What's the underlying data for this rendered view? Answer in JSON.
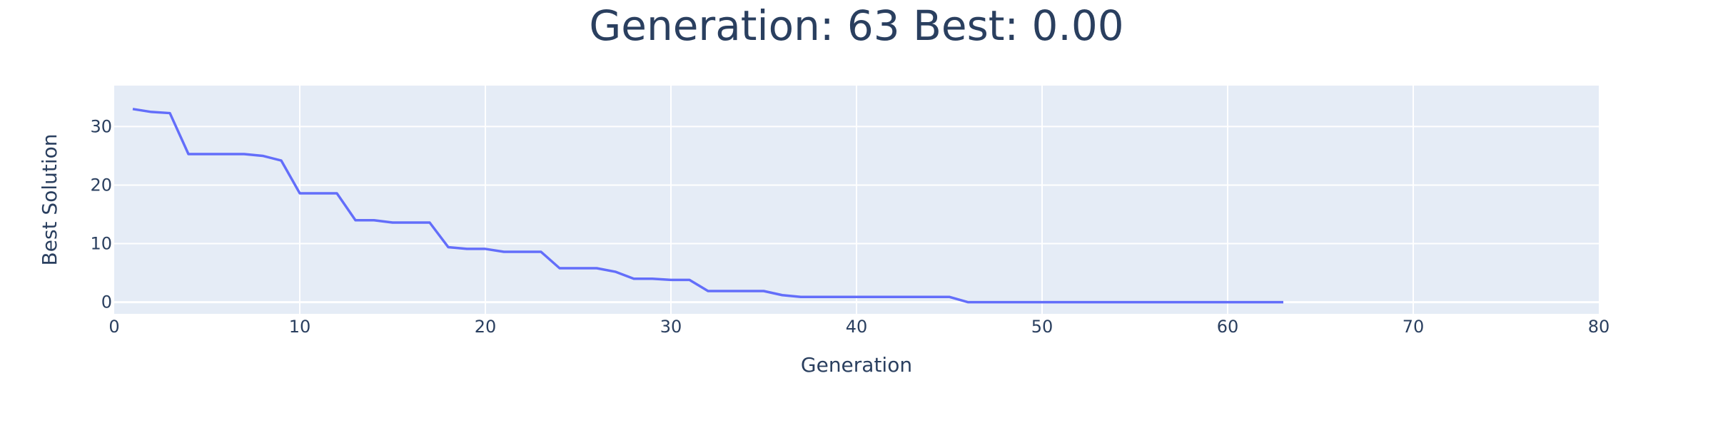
{
  "chart_data": {
    "type": "line",
    "title": "Generation: 63 Best: 0.00",
    "xlabel": "Generation",
    "ylabel": "Best Solution",
    "xlim": [
      0,
      80
    ],
    "ylim": [
      -2,
      37
    ],
    "x_ticks": [
      0,
      10,
      20,
      30,
      40,
      50,
      60,
      70,
      80
    ],
    "y_ticks": [
      0,
      10,
      20,
      30
    ],
    "grid": true,
    "legend": "none",
    "colors": {
      "plot_background": "#e5ecf6",
      "gridline": "#ffffff",
      "line": "#636efa",
      "text": "#2a3f5f"
    },
    "series": [
      {
        "x": [
          1,
          2,
          3,
          4,
          5,
          6,
          7,
          8,
          9,
          10,
          11,
          12,
          13,
          14,
          15,
          16,
          17,
          18,
          19,
          20,
          21,
          22,
          23,
          24,
          25,
          26,
          27,
          28,
          29,
          30,
          31,
          32,
          33,
          34,
          35,
          36,
          37,
          38,
          39,
          40,
          41,
          42,
          43,
          44,
          45,
          46,
          47,
          48,
          49,
          50,
          51,
          52,
          53,
          54,
          55,
          56,
          57,
          58,
          59,
          60,
          61,
          62,
          63
        ],
        "y": [
          33.0,
          32.5,
          32.3,
          25.3,
          25.3,
          25.3,
          25.3,
          25.0,
          24.2,
          18.6,
          18.6,
          18.6,
          14.0,
          14.0,
          13.6,
          13.6,
          13.6,
          9.4,
          9.1,
          9.1,
          8.6,
          8.6,
          8.6,
          5.8,
          5.8,
          5.8,
          5.2,
          4.0,
          4.0,
          3.8,
          3.8,
          1.9,
          1.9,
          1.9,
          1.9,
          1.2,
          0.9,
          0.9,
          0.9,
          0.9,
          0.9,
          0.9,
          0.9,
          0.9,
          0.9,
          0.0,
          0.0,
          0.0,
          0.0,
          0.0,
          0.0,
          0.0,
          0.0,
          0.0,
          0.0,
          0.0,
          0.0,
          0.0,
          0.0,
          0.0,
          0.0,
          0.0,
          0.0
        ]
      }
    ]
  }
}
